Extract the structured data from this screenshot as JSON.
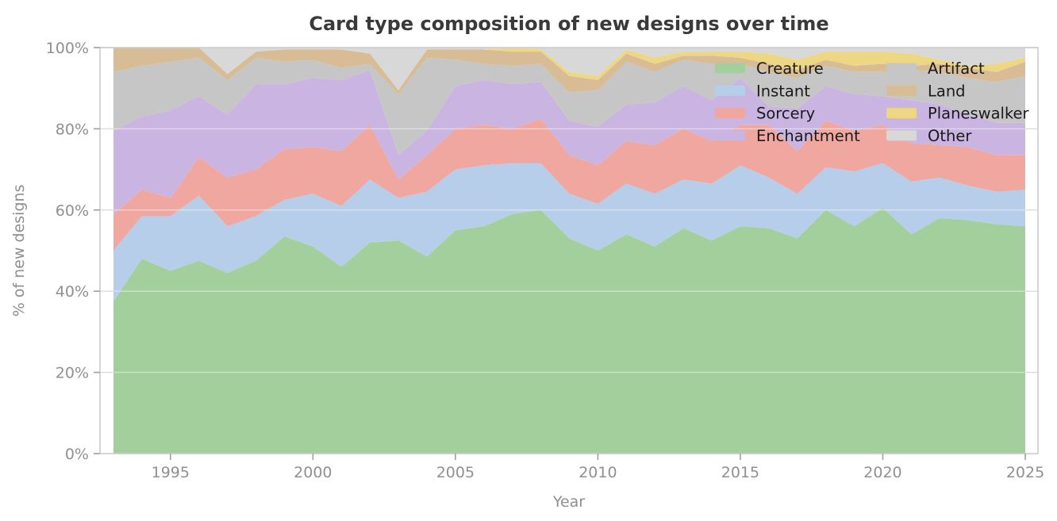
{
  "chart_data": {
    "type": "area",
    "stacked": true,
    "normalized_percent": true,
    "title": "Card type composition of new designs over time",
    "xlabel": "Year",
    "ylabel": "% of new designs",
    "xlim": [
      1993,
      2025
    ],
    "ylim": [
      0,
      100
    ],
    "grid": true,
    "legend_position": "upper right",
    "legend_columns": 2,
    "x_tick_labels": [
      "1995",
      "2000",
      "2005",
      "2010",
      "2015",
      "2020",
      "2025"
    ],
    "x_tick_values": [
      1995,
      2000,
      2005,
      2010,
      2015,
      2020,
      2025
    ],
    "y_tick_labels": [
      "0%",
      "20%",
      "40%",
      "60%",
      "80%",
      "100%"
    ],
    "y_tick_values": [
      0,
      20,
      40,
      60,
      80,
      100
    ],
    "x": [
      1993,
      1994,
      1995,
      1996,
      1997,
      1998,
      1999,
      2000,
      2001,
      2002,
      2003,
      2004,
      2005,
      2006,
      2007,
      2008,
      2009,
      2010,
      2011,
      2012,
      2013,
      2014,
      2015,
      2016,
      2017,
      2018,
      2019,
      2020,
      2021,
      2022,
      2023,
      2024,
      2025
    ],
    "series": [
      {
        "name": "Creature",
        "color": "#a3cf9d",
        "values": [
          37.5,
          48,
          45,
          47.5,
          44.5,
          47.5,
          53.5,
          51,
          46,
          52,
          52.5,
          48.5,
          55,
          56,
          59,
          60,
          53,
          50,
          54,
          51,
          55.5,
          52.5,
          56,
          55.5,
          53,
          60,
          56,
          60.5,
          54,
          58,
          57.5,
          56.5,
          56
        ]
      },
      {
        "name": "Instant",
        "color": "#b6cee9",
        "values": [
          12.5,
          10.5,
          13.5,
          16,
          11.5,
          11,
          9,
          13,
          15,
          15.5,
          10.5,
          16,
          15,
          15,
          12.5,
          11.5,
          11,
          11.5,
          12.5,
          13,
          12,
          14,
          15,
          12.5,
          11,
          10.5,
          13.5,
          11,
          13,
          10,
          8.5,
          8,
          9
        ]
      },
      {
        "name": "Sorcery",
        "color": "#f0a79f",
        "values": [
          9,
          6.5,
          4.5,
          9.5,
          12,
          11.5,
          12.5,
          11.5,
          13.5,
          13.5,
          4.5,
          9,
          10,
          10,
          8.5,
          11,
          9.5,
          9.5,
          10.5,
          12,
          12.5,
          10.5,
          10,
          13,
          10.5,
          11.5,
          10,
          9.5,
          9.5,
          8,
          9.5,
          9,
          8.5
        ]
      },
      {
        "name": "Enchantment",
        "color": "#cab4e2",
        "values": [
          20.5,
          18,
          21.5,
          15,
          15.5,
          21,
          16,
          17,
          17.5,
          13.5,
          6,
          6,
          10.5,
          11,
          11,
          9,
          8.5,
          9.5,
          9,
          10.5,
          10.5,
          10,
          11.5,
          4.5,
          10.5,
          8.5,
          9,
          7,
          10.5,
          10,
          8,
          8,
          8
        ]
      },
      {
        "name": "Artifact",
        "color": "#c6c6c6",
        "values": [
          14.5,
          12.5,
          12,
          9.5,
          8.5,
          6.5,
          5.5,
          4.5,
          3,
          1.5,
          15,
          18,
          6.5,
          4,
          4.5,
          4.5,
          7,
          9,
          10.5,
          7.5,
          6.5,
          9,
          3.5,
          8.5,
          7.5,
          5,
          5.5,
          6,
          7.5,
          8,
          9,
          10,
          11.5
        ]
      },
      {
        "name": "Land",
        "color": "#d7bc95",
        "values": [
          6,
          4.5,
          3.5,
          2.5,
          1.5,
          1.5,
          3,
          2.5,
          4.5,
          2.5,
          1,
          2,
          2.5,
          3.5,
          3.5,
          3,
          4,
          2.5,
          2,
          2,
          1,
          2,
          1.5,
          2,
          2,
          1.5,
          1.5,
          2,
          1,
          2,
          2.5,
          2.5,
          3.5
        ]
      },
      {
        "name": "Planeswalker",
        "color": "#edd783",
        "values": [
          0,
          0,
          0,
          0,
          0,
          0,
          0,
          0,
          0,
          0,
          0,
          0,
          0,
          0,
          1,
          0.5,
          1,
          1,
          1,
          1.5,
          1,
          1,
          1.5,
          2.5,
          2.5,
          2,
          3.5,
          3,
          3,
          1,
          0.5,
          2,
          1
        ]
      },
      {
        "name": "Other",
        "color": "#d8d8d8",
        "values": [
          0,
          0,
          0,
          0,
          6.5,
          1,
          0.5,
          0.5,
          0.5,
          1.5,
          10.5,
          0.5,
          0.5,
          0.5,
          0,
          0.5,
          6,
          7,
          0.5,
          2.5,
          1,
          1,
          1,
          1.5,
          3,
          1,
          1,
          1,
          1.5,
          3,
          4.5,
          4,
          2.5
        ]
      }
    ],
    "ui_colors": {
      "title_text": "#3a3a3a",
      "axis_text": "#8f8f8f",
      "spine": "#cccccc",
      "tick_mark": "#a0a0a0",
      "gridline_over_area": "rgba(255,255,255,0.45)",
      "gridline_on_white": "#dcdcdc",
      "background": "#ffffff"
    }
  }
}
